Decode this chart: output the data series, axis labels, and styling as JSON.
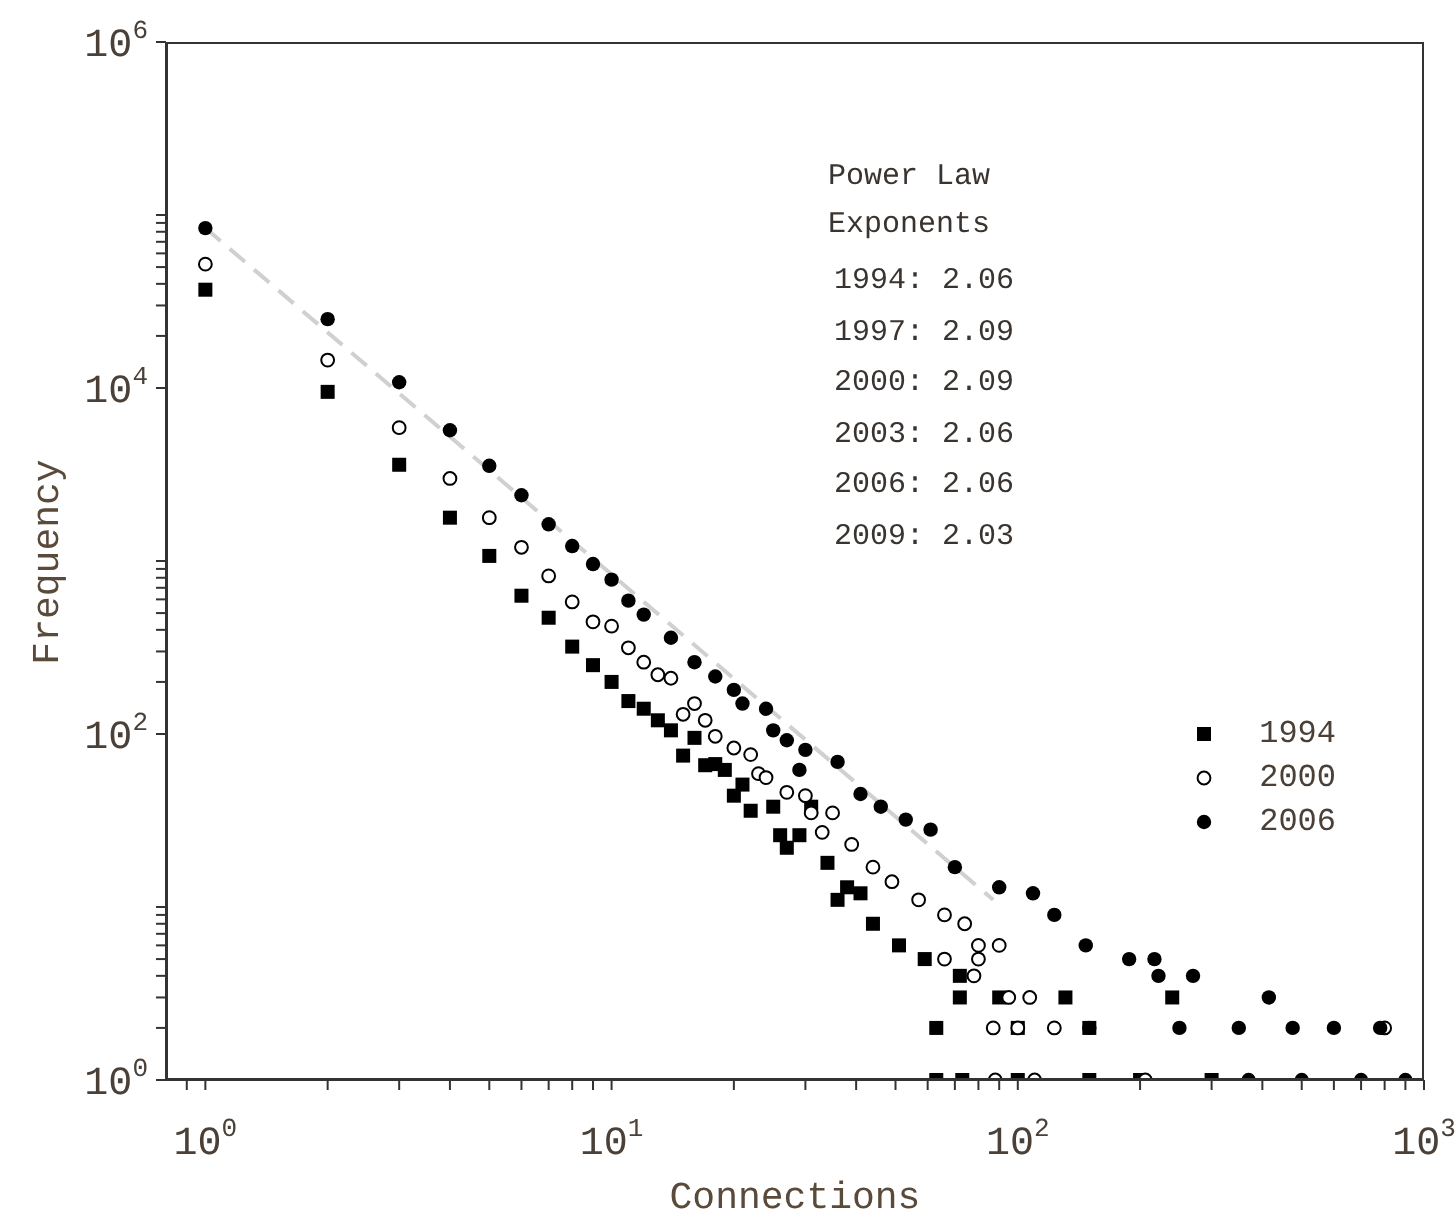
{
  "chart_data": {
    "type": "scatter",
    "xlabel": "Connections",
    "ylabel": "Frequency",
    "log": "xy",
    "legend": "right",
    "xlim": [
      0.8,
      1000
    ],
    "ylim": [
      1,
      1000000
    ],
    "xticks": [
      {
        "value": 0.9,
        "label": null
      },
      {
        "value": 1,
        "label": "10$^{0}$"
      },
      {
        "value": 2,
        "label": null
      },
      {
        "value": 3,
        "label": null
      },
      {
        "value": 4,
        "label": null
      },
      {
        "value": 5,
        "label": null
      },
      {
        "value": 6,
        "label": null
      },
      {
        "value": 7,
        "label": null
      },
      {
        "value": 8,
        "label": null
      },
      {
        "value": 9,
        "label": null
      },
      {
        "value": 10,
        "label": "10$^{1}$"
      },
      {
        "value": 20,
        "label": null
      },
      {
        "value": 30,
        "label": null
      },
      {
        "value": 40,
        "label": null
      },
      {
        "value": 50,
        "label": null
      },
      {
        "value": 60,
        "label": null
      },
      {
        "value": 70,
        "label": null
      },
      {
        "value": 80,
        "label": null
      },
      {
        "value": 90,
        "label": null
      },
      {
        "value": 100,
        "label": "10$^{2}$"
      },
      {
        "value": 200,
        "label": null
      },
      {
        "value": 300,
        "label": null
      },
      {
        "value": 400,
        "label": null
      },
      {
        "value": 500,
        "label": null
      },
      {
        "value": 600,
        "label": null
      },
      {
        "value": 700,
        "label": null
      },
      {
        "value": 800,
        "label": null
      },
      {
        "value": 900,
        "label": null
      },
      {
        "value": 1000,
        "label": "10$^{3}$"
      }
    ],
    "yticks": [
      {
        "value": 1,
        "label": "10$^{0}$"
      },
      {
        "value": 2,
        "label": null
      },
      {
        "value": 3,
        "label": null
      },
      {
        "value": 4,
        "label": null
      },
      {
        "value": 5,
        "label": null
      },
      {
        "value": 6,
        "label": null
      },
      {
        "value": 7,
        "label": null
      },
      {
        "value": 8,
        "label": null
      },
      {
        "value": 9,
        "label": null
      },
      {
        "value": 10,
        "label": null
      },
      {
        "value": 100,
        "label": "10$^{2}$"
      },
      {
        "value": 200,
        "label": null
      },
      {
        "value": 300,
        "label": null
      },
      {
        "value": 400,
        "label": null
      },
      {
        "value": 500,
        "label": null
      },
      {
        "value": 600,
        "label": null
      },
      {
        "value": 700,
        "label": null
      },
      {
        "value": 800,
        "label": null
      },
      {
        "value": 900,
        "label": null
      },
      {
        "value": 1000,
        "label": null
      },
      {
        "value": 10000,
        "label": "10$^{4}$"
      },
      {
        "value": 20000,
        "label": null
      },
      {
        "value": 30000,
        "label": null
      },
      {
        "value": 40000,
        "label": null
      },
      {
        "value": 50000,
        "label": null
      },
      {
        "value": 60000,
        "label": null
      },
      {
        "value": 70000,
        "label": null
      },
      {
        "value": 80000,
        "label": null
      },
      {
        "value": 90000,
        "label": null
      },
      {
        "value": 100000,
        "label": null
      },
      {
        "value": 1000000,
        "label": "10$^{6}$"
      }
    ],
    "annotations": [
      "Power Law",
      "Exponents",
      "1994: 2.06",
      "1997: 2.09",
      "2000: 2.09",
      "2003: 2.06",
      "2006: 2.06",
      "2009: 2.03"
    ],
    "series": [
      {
        "type": "line",
        "color": "#d0d0d0",
        "line_style": "dashed",
        "marker": "none",
        "x": [
          1,
          87
        ],
        "values": [
          84000,
          11
        ]
      },
      {
        "name": "1994",
        "color": "#000000",
        "marker": "square",
        "x": [
          1,
          2,
          3,
          4,
          5,
          6,
          7,
          8,
          9,
          10,
          11,
          12,
          13,
          14,
          15,
          16,
          17,
          18,
          19,
          20,
          21,
          22,
          25,
          26,
          27,
          29,
          31,
          34,
          36,
          38,
          41,
          44,
          51,
          59,
          72,
          72,
          90,
          131,
          240,
          63,
          100,
          150,
          63,
          73,
          100,
          150,
          200,
          300
        ],
        "values": [
          37000,
          9500,
          3600,
          1780,
          1070,
          630,
          470,
          320,
          250,
          200,
          155,
          140,
          120,
          105,
          75,
          95,
          66,
          67,
          62,
          44,
          51,
          36,
          38,
          26,
          22,
          26,
          38,
          18,
          11,
          13,
          12,
          8,
          6,
          5,
          4,
          3,
          3,
          3,
          3,
          2,
          2,
          2,
          1,
          1,
          1,
          1,
          1,
          1
        ]
      },
      {
        "name": "2000",
        "color": "#000000",
        "marker": "circle_open",
        "x": [
          1,
          2,
          3,
          4,
          5,
          6,
          7,
          8,
          9,
          10,
          11,
          12,
          13,
          14,
          15,
          16,
          17,
          18,
          20,
          22,
          23,
          24,
          27,
          30,
          31,
          35,
          33,
          39,
          44,
          49,
          57,
          66,
          74,
          80,
          90,
          66,
          80,
          78,
          95,
          107,
          87,
          100,
          123,
          800,
          88,
          110,
          206
        ],
        "values": [
          52000,
          14500,
          5900,
          3000,
          1780,
          1200,
          820,
          580,
          445,
          420,
          315,
          260,
          220,
          210,
          130,
          150,
          120,
          97,
          83,
          76,
          59,
          56,
          46,
          44,
          35,
          35,
          27,
          23,
          17,
          14,
          11,
          9,
          8,
          6,
          6,
          5,
          5,
          4,
          3,
          3,
          2,
          2,
          2,
          2,
          1,
          1,
          1
        ]
      },
      {
        "name": "2006",
        "color": "#000000",
        "marker": "circle",
        "x": [
          1,
          2,
          3,
          4,
          5,
          6,
          7,
          8,
          9,
          10,
          11,
          12,
          14,
          16,
          18,
          20,
          21,
          24,
          25,
          27,
          30,
          36,
          29,
          41,
          46,
          53,
          61,
          70,
          90,
          109,
          123,
          147,
          188,
          217,
          222,
          270,
          415,
          150,
          250,
          350,
          475,
          600,
          780,
          370,
          500,
          700,
          900
        ],
        "values": [
          84000,
          25000,
          10800,
          5700,
          3550,
          2400,
          1630,
          1220,
          960,
          780,
          590,
          490,
          360,
          260,
          215,
          180,
          150,
          140,
          105,
          92,
          81,
          69,
          62,
          45,
          38,
          32,
          28,
          17,
          13,
          12,
          9,
          6,
          5,
          5,
          4,
          4,
          3,
          2,
          2,
          2,
          2,
          2,
          2,
          1,
          1,
          1,
          1
        ]
      }
    ]
  }
}
